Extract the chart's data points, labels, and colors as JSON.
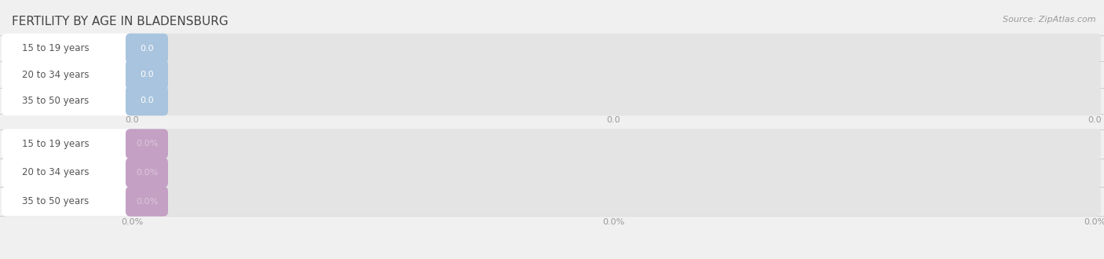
{
  "title": "FERTILITY BY AGE IN BLADENSBURG",
  "source_text": "Source: ZipAtlas.com",
  "fig_bg": "#f0f0f0",
  "sections": [
    {
      "categories": [
        "15 to 19 years",
        "20 to 34 years",
        "35 to 50 years"
      ],
      "values": [
        0.0,
        0.0,
        0.0
      ],
      "bar_color": "#a8c4de",
      "bar_bg_color": "#e4e4e4",
      "label_bg_color": "#ffffff",
      "label_color": "#555555",
      "value_text_color": "#ffffff",
      "tick_label_color": "#999999",
      "tick_labels": [
        "0.0",
        "0.0",
        "0.0"
      ],
      "is_percent": false
    },
    {
      "categories": [
        "15 to 19 years",
        "20 to 34 years",
        "35 to 50 years"
      ],
      "values": [
        0.0,
        0.0,
        0.0
      ],
      "bar_color": "#c4a0c4",
      "bar_bg_color": "#e4e4e4",
      "label_bg_color": "#ffffff",
      "label_color": "#555555",
      "value_text_color": "#ddc8dc",
      "tick_label_color": "#999999",
      "tick_labels": [
        "0.0%",
        "0.0%",
        "0.0%"
      ],
      "is_percent": true
    }
  ],
  "title_fontsize": 11,
  "label_fontsize": 8.5,
  "value_fontsize": 8,
  "tick_fontsize": 8,
  "source_fontsize": 8
}
